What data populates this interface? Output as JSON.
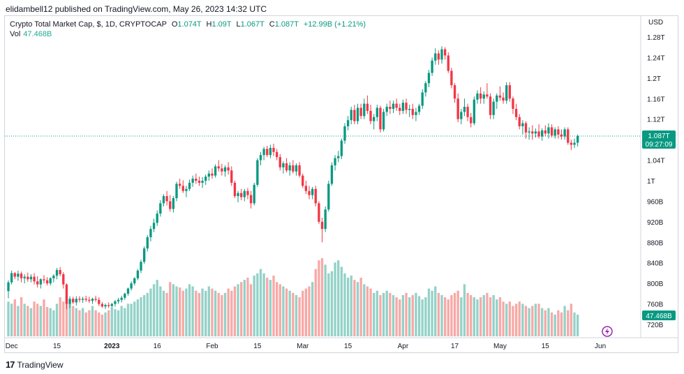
{
  "header": {
    "published_by": "elidambell12 published on TradingView.com, May 26, 2023 14:32 UTC"
  },
  "legend": {
    "symbol": "Crypto Total Market Cap, $, 1D, CRYPTOCAP",
    "open_label": "O",
    "open": "1.074T",
    "high_label": "H",
    "high": "1.09T",
    "low_label": "L",
    "low": "1.067T",
    "close_label": "C",
    "close": "1.087T",
    "change": "+12.99B (+1.21%)",
    "vol_label": "Vol",
    "vol_value": "47.468B"
  },
  "price_axis": {
    "currency": "USD",
    "current_price_label": "1.087T",
    "countdown": "09:27:09",
    "volume_label": "47.468B"
  },
  "footer": {
    "brand": "TradingView"
  },
  "colors": {
    "up": "#089981",
    "down": "#f23645",
    "vol_up": "#93d2c8",
    "vol_down": "#f7a9a7",
    "last_price_line": "#089981",
    "flash_icon": "#9c27b0"
  },
  "chart_data": {
    "type": "candlestick",
    "title": "Crypto Total Market Cap, $, 1D, CRYPTOCAP",
    "ylabel": "USD",
    "ylim": [
      700,
      1300
    ],
    "y_unit": "billions USD",
    "y_ticks": [
      {
        "value": 1280,
        "label": "1.28T"
      },
      {
        "value": 1240,
        "label": "1.24T"
      },
      {
        "value": 1200,
        "label": "1.2T"
      },
      {
        "value": 1160,
        "label": "1.16T"
      },
      {
        "value": 1120,
        "label": "1.12T"
      },
      {
        "value": 1040,
        "label": "1.04T"
      },
      {
        "value": 1000,
        "label": "1T"
      },
      {
        "value": 960,
        "label": "960B"
      },
      {
        "value": 920,
        "label": "920B"
      },
      {
        "value": 880,
        "label": "880B"
      },
      {
        "value": 840,
        "label": "840B"
      },
      {
        "value": 800,
        "label": "800B"
      },
      {
        "value": 760,
        "label": "760B"
      },
      {
        "value": 720,
        "label": "720B"
      }
    ],
    "x_ticks": [
      {
        "index": 1,
        "label": "Dec"
      },
      {
        "index": 15,
        "label": "15"
      },
      {
        "index": 32,
        "label": "2023"
      },
      {
        "index": 46,
        "label": "16"
      },
      {
        "index": 63,
        "label": "Feb"
      },
      {
        "index": 77,
        "label": "15"
      },
      {
        "index": 91,
        "label": "Mar"
      },
      {
        "index": 105,
        "label": "15"
      },
      {
        "index": 122,
        "label": "Apr"
      },
      {
        "index": 138,
        "label": "17"
      },
      {
        "index": 152,
        "label": "May"
      },
      {
        "index": 166,
        "label": "15"
      },
      {
        "index": 183,
        "label": "Jun"
      }
    ],
    "x_count": 187,
    "last_price": 1087,
    "volume_max_label": "47.468B",
    "candles": [
      [
        785,
        806,
        771,
        802
      ],
      [
        802,
        825,
        798,
        820
      ],
      [
        820,
        822,
        808,
        813
      ],
      [
        813,
        825,
        805,
        819
      ],
      [
        819,
        823,
        802,
        810
      ],
      [
        810,
        818,
        800,
        813
      ],
      [
        813,
        821,
        803,
        808
      ],
      [
        808,
        818,
        802,
        813
      ],
      [
        813,
        820,
        798,
        804
      ],
      [
        804,
        814,
        792,
        798
      ],
      [
        798,
        810,
        790,
        808
      ],
      [
        808,
        816,
        800,
        806
      ],
      [
        806,
        812,
        796,
        800
      ],
      [
        800,
        812,
        796,
        810
      ],
      [
        810,
        818,
        802,
        815
      ],
      [
        815,
        830,
        808,
        826
      ],
      [
        826,
        832,
        814,
        818
      ],
      [
        818,
        822,
        790,
        798
      ],
      [
        798,
        800,
        750,
        760
      ],
      [
        760,
        775,
        752,
        770
      ],
      [
        770,
        774,
        760,
        763
      ],
      [
        763,
        775,
        757,
        770
      ],
      [
        770,
        775,
        763,
        768
      ],
      [
        768,
        774,
        762,
        770
      ],
      [
        770,
        776,
        764,
        768
      ],
      [
        768,
        774,
        762,
        766
      ],
      [
        766,
        772,
        760,
        770
      ],
      [
        770,
        776,
        764,
        768
      ],
      [
        768,
        773,
        756,
        760
      ],
      [
        760,
        764,
        752,
        755
      ],
      [
        755,
        761,
        750,
        758
      ],
      [
        758,
        763,
        752,
        756
      ],
      [
        756,
        762,
        751,
        760
      ],
      [
        760,
        768,
        755,
        765
      ],
      [
        765,
        772,
        760,
        768
      ],
      [
        768,
        776,
        763,
        772
      ],
      [
        772,
        782,
        768,
        780
      ],
      [
        780,
        792,
        776,
        790
      ],
      [
        790,
        804,
        786,
        800
      ],
      [
        800,
        812,
        796,
        810
      ],
      [
        810,
        828,
        806,
        825
      ],
      [
        825,
        846,
        820,
        842
      ],
      [
        842,
        872,
        838,
        868
      ],
      [
        868,
        894,
        862,
        890
      ],
      [
        890,
        912,
        882,
        906
      ],
      [
        906,
        926,
        900,
        918
      ],
      [
        918,
        942,
        912,
        936
      ],
      [
        936,
        962,
        930,
        956
      ],
      [
        956,
        974,
        950,
        970
      ],
      [
        970,
        980,
        952,
        960
      ],
      [
        960,
        972,
        940,
        945
      ],
      [
        945,
        970,
        938,
        966
      ],
      [
        966,
        998,
        960,
        994
      ],
      [
        994,
        1004,
        984,
        990
      ],
      [
        990,
        1001,
        976,
        980
      ],
      [
        980,
        990,
        968,
        984
      ],
      [
        984,
        1002,
        980,
        996
      ],
      [
        996,
        1010,
        988,
        1004
      ],
      [
        1004,
        1014,
        994,
        1000
      ],
      [
        1000,
        1008,
        990,
        996
      ],
      [
        996,
        1007,
        986,
        1000
      ],
      [
        1000,
        1012,
        992,
        1008
      ],
      [
        1008,
        1020,
        1000,
        1014
      ],
      [
        1014,
        1024,
        1004,
        1010
      ],
      [
        1010,
        1032,
        1006,
        1028
      ],
      [
        1028,
        1040,
        1018,
        1024
      ],
      [
        1024,
        1033,
        1010,
        1018
      ],
      [
        1018,
        1030,
        1008,
        1026
      ],
      [
        1026,
        1036,
        1012,
        1020
      ],
      [
        1020,
        1028,
        990,
        996
      ],
      [
        996,
        1000,
        966,
        970
      ],
      [
        970,
        980,
        958,
        976
      ],
      [
        976,
        984,
        962,
        968
      ],
      [
        968,
        984,
        960,
        980
      ],
      [
        980,
        986,
        964,
        972
      ],
      [
        972,
        980,
        946,
        956
      ],
      [
        956,
        996,
        952,
        992
      ],
      [
        992,
        1044,
        988,
        1040
      ],
      [
        1040,
        1056,
        1030,
        1050
      ],
      [
        1050,
        1066,
        1040,
        1062
      ],
      [
        1062,
        1068,
        1046,
        1050
      ],
      [
        1050,
        1070,
        1044,
        1064
      ],
      [
        1064,
        1072,
        1048,
        1056
      ],
      [
        1056,
        1062,
        1040,
        1046
      ],
      [
        1046,
        1052,
        1020,
        1026
      ],
      [
        1026,
        1038,
        1014,
        1034
      ],
      [
        1034,
        1044,
        1016,
        1020
      ],
      [
        1020,
        1036,
        1010,
        1030
      ],
      [
        1030,
        1040,
        1014,
        1018
      ],
      [
        1018,
        1034,
        1010,
        1030
      ],
      [
        1030,
        1036,
        1006,
        1010
      ],
      [
        1010,
        1014,
        986,
        990
      ],
      [
        990,
        1000,
        974,
        980
      ],
      [
        980,
        990,
        964,
        972
      ],
      [
        972,
        988,
        964,
        984
      ],
      [
        984,
        990,
        950,
        956
      ],
      [
        956,
        960,
        916,
        920
      ],
      [
        920,
        928,
        880,
        906
      ],
      [
        906,
        950,
        900,
        944
      ],
      [
        944,
        1000,
        940,
        994
      ],
      [
        994,
        1036,
        990,
        1030
      ],
      [
        1030,
        1050,
        1020,
        1044
      ],
      [
        1044,
        1058,
        1036,
        1048
      ],
      [
        1048,
        1082,
        1042,
        1078
      ],
      [
        1078,
        1112,
        1072,
        1106
      ],
      [
        1106,
        1126,
        1098,
        1118
      ],
      [
        1118,
        1144,
        1110,
        1138
      ],
      [
        1138,
        1148,
        1110,
        1116
      ],
      [
        1116,
        1150,
        1110,
        1142
      ],
      [
        1142,
        1150,
        1120,
        1126
      ],
      [
        1126,
        1160,
        1120,
        1150
      ],
      [
        1150,
        1166,
        1130,
        1136
      ],
      [
        1136,
        1148,
        1110,
        1116
      ],
      [
        1116,
        1130,
        1100,
        1124
      ],
      [
        1124,
        1148,
        1116,
        1142
      ],
      [
        1142,
        1146,
        1094,
        1100
      ],
      [
        1100,
        1140,
        1096,
        1134
      ],
      [
        1134,
        1150,
        1126,
        1144
      ],
      [
        1144,
        1156,
        1130,
        1140
      ],
      [
        1140,
        1156,
        1132,
        1150
      ],
      [
        1150,
        1160,
        1136,
        1142
      ],
      [
        1142,
        1150,
        1128,
        1136
      ],
      [
        1136,
        1158,
        1130,
        1152
      ],
      [
        1152,
        1160,
        1130,
        1138
      ],
      [
        1138,
        1148,
        1124,
        1140
      ],
      [
        1140,
        1150,
        1120,
        1128
      ],
      [
        1128,
        1142,
        1116,
        1134
      ],
      [
        1134,
        1150,
        1128,
        1146
      ],
      [
        1146,
        1178,
        1140,
        1172
      ],
      [
        1172,
        1194,
        1164,
        1190
      ],
      [
        1190,
        1216,
        1182,
        1210
      ],
      [
        1210,
        1240,
        1204,
        1234
      ],
      [
        1234,
        1258,
        1226,
        1248
      ],
      [
        1248,
        1254,
        1226,
        1236
      ],
      [
        1236,
        1262,
        1228,
        1256
      ],
      [
        1256,
        1260,
        1236,
        1244
      ],
      [
        1244,
        1250,
        1210,
        1214
      ],
      [
        1214,
        1220,
        1180,
        1186
      ],
      [
        1186,
        1190,
        1152,
        1160
      ],
      [
        1160,
        1170,
        1114,
        1120
      ],
      [
        1120,
        1140,
        1110,
        1134
      ],
      [
        1134,
        1160,
        1126,
        1144
      ],
      [
        1144,
        1150,
        1116,
        1124
      ],
      [
        1124,
        1132,
        1104,
        1112
      ],
      [
        1112,
        1164,
        1108,
        1158
      ],
      [
        1158,
        1176,
        1150,
        1170
      ],
      [
        1170,
        1182,
        1150,
        1160
      ],
      [
        1160,
        1174,
        1150,
        1168
      ],
      [
        1168,
        1190,
        1160,
        1164
      ],
      [
        1164,
        1170,
        1120,
        1128
      ],
      [
        1128,
        1160,
        1120,
        1154
      ],
      [
        1154,
        1170,
        1140,
        1166
      ],
      [
        1166,
        1184,
        1156,
        1162
      ],
      [
        1162,
        1172,
        1150,
        1156
      ],
      [
        1156,
        1192,
        1150,
        1186
      ],
      [
        1186,
        1192,
        1154,
        1160
      ],
      [
        1160,
        1164,
        1130,
        1140
      ],
      [
        1140,
        1150,
        1118,
        1124
      ],
      [
        1124,
        1130,
        1100,
        1106
      ],
      [
        1106,
        1118,
        1090,
        1112
      ],
      [
        1112,
        1116,
        1082,
        1094
      ],
      [
        1094,
        1104,
        1080,
        1096
      ],
      [
        1096,
        1108,
        1080,
        1092
      ],
      [
        1092,
        1102,
        1084,
        1096
      ],
      [
        1096,
        1110,
        1082,
        1086
      ],
      [
        1086,
        1102,
        1078,
        1098
      ],
      [
        1098,
        1108,
        1086,
        1092
      ],
      [
        1092,
        1112,
        1082,
        1104
      ],
      [
        1104,
        1110,
        1084,
        1088
      ],
      [
        1088,
        1104,
        1082,
        1100
      ],
      [
        1100,
        1106,
        1082,
        1090
      ],
      [
        1090,
        1100,
        1080,
        1086
      ],
      [
        1086,
        1104,
        1080,
        1100
      ],
      [
        1100,
        1104,
        1070,
        1074
      ],
      [
        1074,
        1080,
        1060,
        1070
      ],
      [
        1070,
        1082,
        1064,
        1074
      ],
      [
        1074,
        1090,
        1067,
        1087
      ]
    ],
    "volumes": [
      32,
      30,
      34,
      28,
      36,
      30,
      28,
      26,
      32,
      30,
      28,
      34,
      27,
      26,
      24,
      30,
      36,
      32,
      38,
      30,
      28,
      26,
      24,
      26,
      22,
      24,
      28,
      24,
      22,
      20,
      22,
      24,
      26,
      25,
      24,
      28,
      26,
      30,
      30,
      32,
      34,
      36,
      38,
      40,
      44,
      48,
      52,
      46,
      42,
      40,
      50,
      48,
      46,
      45,
      42,
      44,
      48,
      46,
      42,
      40,
      44,
      42,
      46,
      44,
      42,
      40,
      38,
      40,
      44,
      42,
      46,
      48,
      50,
      52,
      54,
      48,
      56,
      58,
      62,
      58,
      54,
      52,
      56,
      50,
      48,
      46,
      44,
      42,
      40,
      38,
      36,
      42,
      44,
      46,
      50,
      62,
      70,
      72,
      66,
      58,
      60,
      68,
      70,
      64,
      58,
      54,
      56,
      52,
      50,
      54,
      48,
      46,
      44,
      40,
      42,
      38,
      40,
      42,
      40,
      38,
      36,
      34,
      38,
      40,
      36,
      38,
      40,
      37,
      34,
      36,
      44,
      42,
      46,
      40,
      38,
      36,
      34,
      38,
      40,
      42,
      36,
      48,
      40,
      38,
      36,
      34,
      36,
      38,
      40,
      36,
      38,
      34,
      36,
      32,
      30,
      32,
      28,
      30,
      32,
      30,
      28,
      26,
      28,
      30,
      30,
      26,
      24,
      26,
      22,
      20,
      24,
      22,
      28,
      24,
      30,
      22,
      20
    ]
  }
}
